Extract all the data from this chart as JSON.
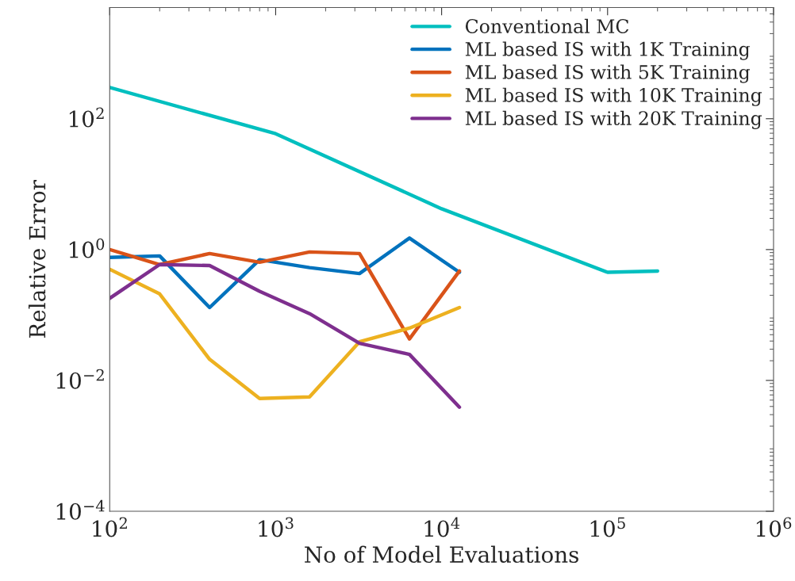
{
  "chart_data": {
    "type": "line",
    "xlabel": "No of Model Evaluations",
    "ylabel": "Relative Error",
    "log": "xy",
    "grid": false,
    "legend": "top right",
    "xlim": [
      100,
      1000000
    ],
    "ylim": [
      0.0001,
      5000
    ],
    "xticks": [
      {
        "value": 100,
        "label": "10$^{2}$"
      },
      {
        "value": 1000,
        "label": "10$^{3}$"
      },
      {
        "value": 10000,
        "label": "10$^{4}$"
      },
      {
        "value": 100000,
        "label": "10$^{5}$"
      },
      {
        "value": 1000000,
        "label": "10$^{6}$"
      }
    ],
    "yticks": [
      {
        "value": 0.0001,
        "label": "10$^{−4}$"
      },
      {
        "value": 0.01,
        "label": "10$^{−2}$"
      },
      {
        "value": 1,
        "label": "10$^{0}$"
      },
      {
        "value": 100,
        "label": "10$^{2}$"
      }
    ],
    "series": [
      {
        "name": "Conventional MC",
        "color": "#00bfbf",
        "x": [
          100,
          1000,
          10000,
          100000,
          200000
        ],
        "values": [
          300,
          59,
          4.2,
          0.45,
          0.47
        ]
      },
      {
        "name": "ML based IS with 1K Training",
        "color": "#0072bd",
        "x": [
          100,
          200,
          400,
          800,
          1600,
          3200,
          6400,
          12800
        ],
        "values": [
          0.76,
          0.8,
          0.13,
          0.7,
          0.53,
          0.43,
          1.5,
          0.45
        ]
      },
      {
        "name": "ML based IS with 5K Training",
        "color": "#d95319",
        "x": [
          100,
          200,
          400,
          800,
          1600,
          3200,
          6400,
          12800
        ],
        "values": [
          1.0,
          0.59,
          0.87,
          0.64,
          0.92,
          0.87,
          0.043,
          0.47
        ]
      },
      {
        "name": "ML based IS with 10K Training",
        "color": "#edb120",
        "x": [
          100,
          200,
          400,
          800,
          1600,
          3200,
          6400,
          12800
        ],
        "values": [
          0.5,
          0.21,
          0.021,
          0.0053,
          0.0056,
          0.039,
          0.063,
          0.13
        ]
      },
      {
        "name": "ML based IS with 20K Training",
        "color": "#7e2f8e",
        "x": [
          100,
          200,
          400,
          800,
          1600,
          3200,
          6400,
          12800
        ],
        "values": [
          0.18,
          0.59,
          0.57,
          0.23,
          0.105,
          0.037,
          0.025,
          0.0039
        ]
      }
    ]
  }
}
